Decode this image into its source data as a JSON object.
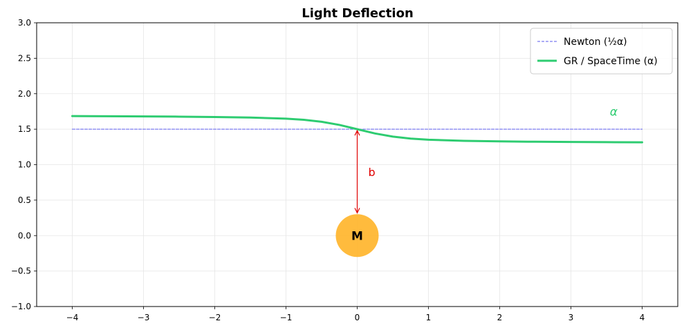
{
  "chart_data": {
    "type": "line",
    "title": "Light Deflection",
    "xlabel": "",
    "ylabel": "",
    "xlim": [
      -4.5,
      4.5
    ],
    "ylim": [
      -1.0,
      3.0
    ],
    "grid": true,
    "xticks": [
      -4,
      -3,
      -2,
      -1,
      0,
      1,
      2,
      3,
      4
    ],
    "xtick_labels": [
      "−4",
      "−3",
      "−2",
      "−1",
      "0",
      "1",
      "2",
      "3",
      "4"
    ],
    "yticks": [
      -1.0,
      -0.5,
      0.0,
      0.5,
      1.0,
      1.5,
      2.0,
      2.5,
      3.0
    ],
    "ytick_labels": [
      "−1.0",
      "−0.5",
      "0.0",
      "0.5",
      "1.0",
      "1.5",
      "2.0",
      "2.5",
      "3.0"
    ],
    "legend_position": "top-right",
    "series": [
      {
        "name": "Newton (½α)",
        "style": "dashed",
        "color": "#7b7bf0",
        "x": [
          -4,
          4
        ],
        "y": [
          1.5,
          1.5
        ]
      },
      {
        "name": "GR / SpaceTime (α)",
        "style": "solid",
        "color": "#2ecc71",
        "x": [
          -4,
          -3.5,
          -3,
          -2.5,
          -2,
          -1.5,
          -1,
          -0.75,
          -0.5,
          -0.25,
          0,
          0.25,
          0.5,
          0.75,
          1,
          1.5,
          2,
          2.5,
          3,
          3.5,
          4
        ],
        "y": [
          1.685,
          1.683,
          1.68,
          1.677,
          1.672,
          1.664,
          1.648,
          1.633,
          1.605,
          1.56,
          1.5,
          1.44,
          1.395,
          1.367,
          1.352,
          1.336,
          1.328,
          1.323,
          1.32,
          1.317,
          1.315
        ]
      }
    ],
    "annotations": {
      "mass": {
        "label": "M",
        "x": 0,
        "y": 0,
        "color": "#ffb428"
      },
      "impact_parameter": {
        "label": "b",
        "x": 0,
        "y_from": 0.32,
        "y_to": 1.48,
        "color": "#e00000"
      },
      "alpha": {
        "label": "α",
        "x": 3.6,
        "y": 1.75,
        "color": "#2ecc71"
      }
    }
  }
}
